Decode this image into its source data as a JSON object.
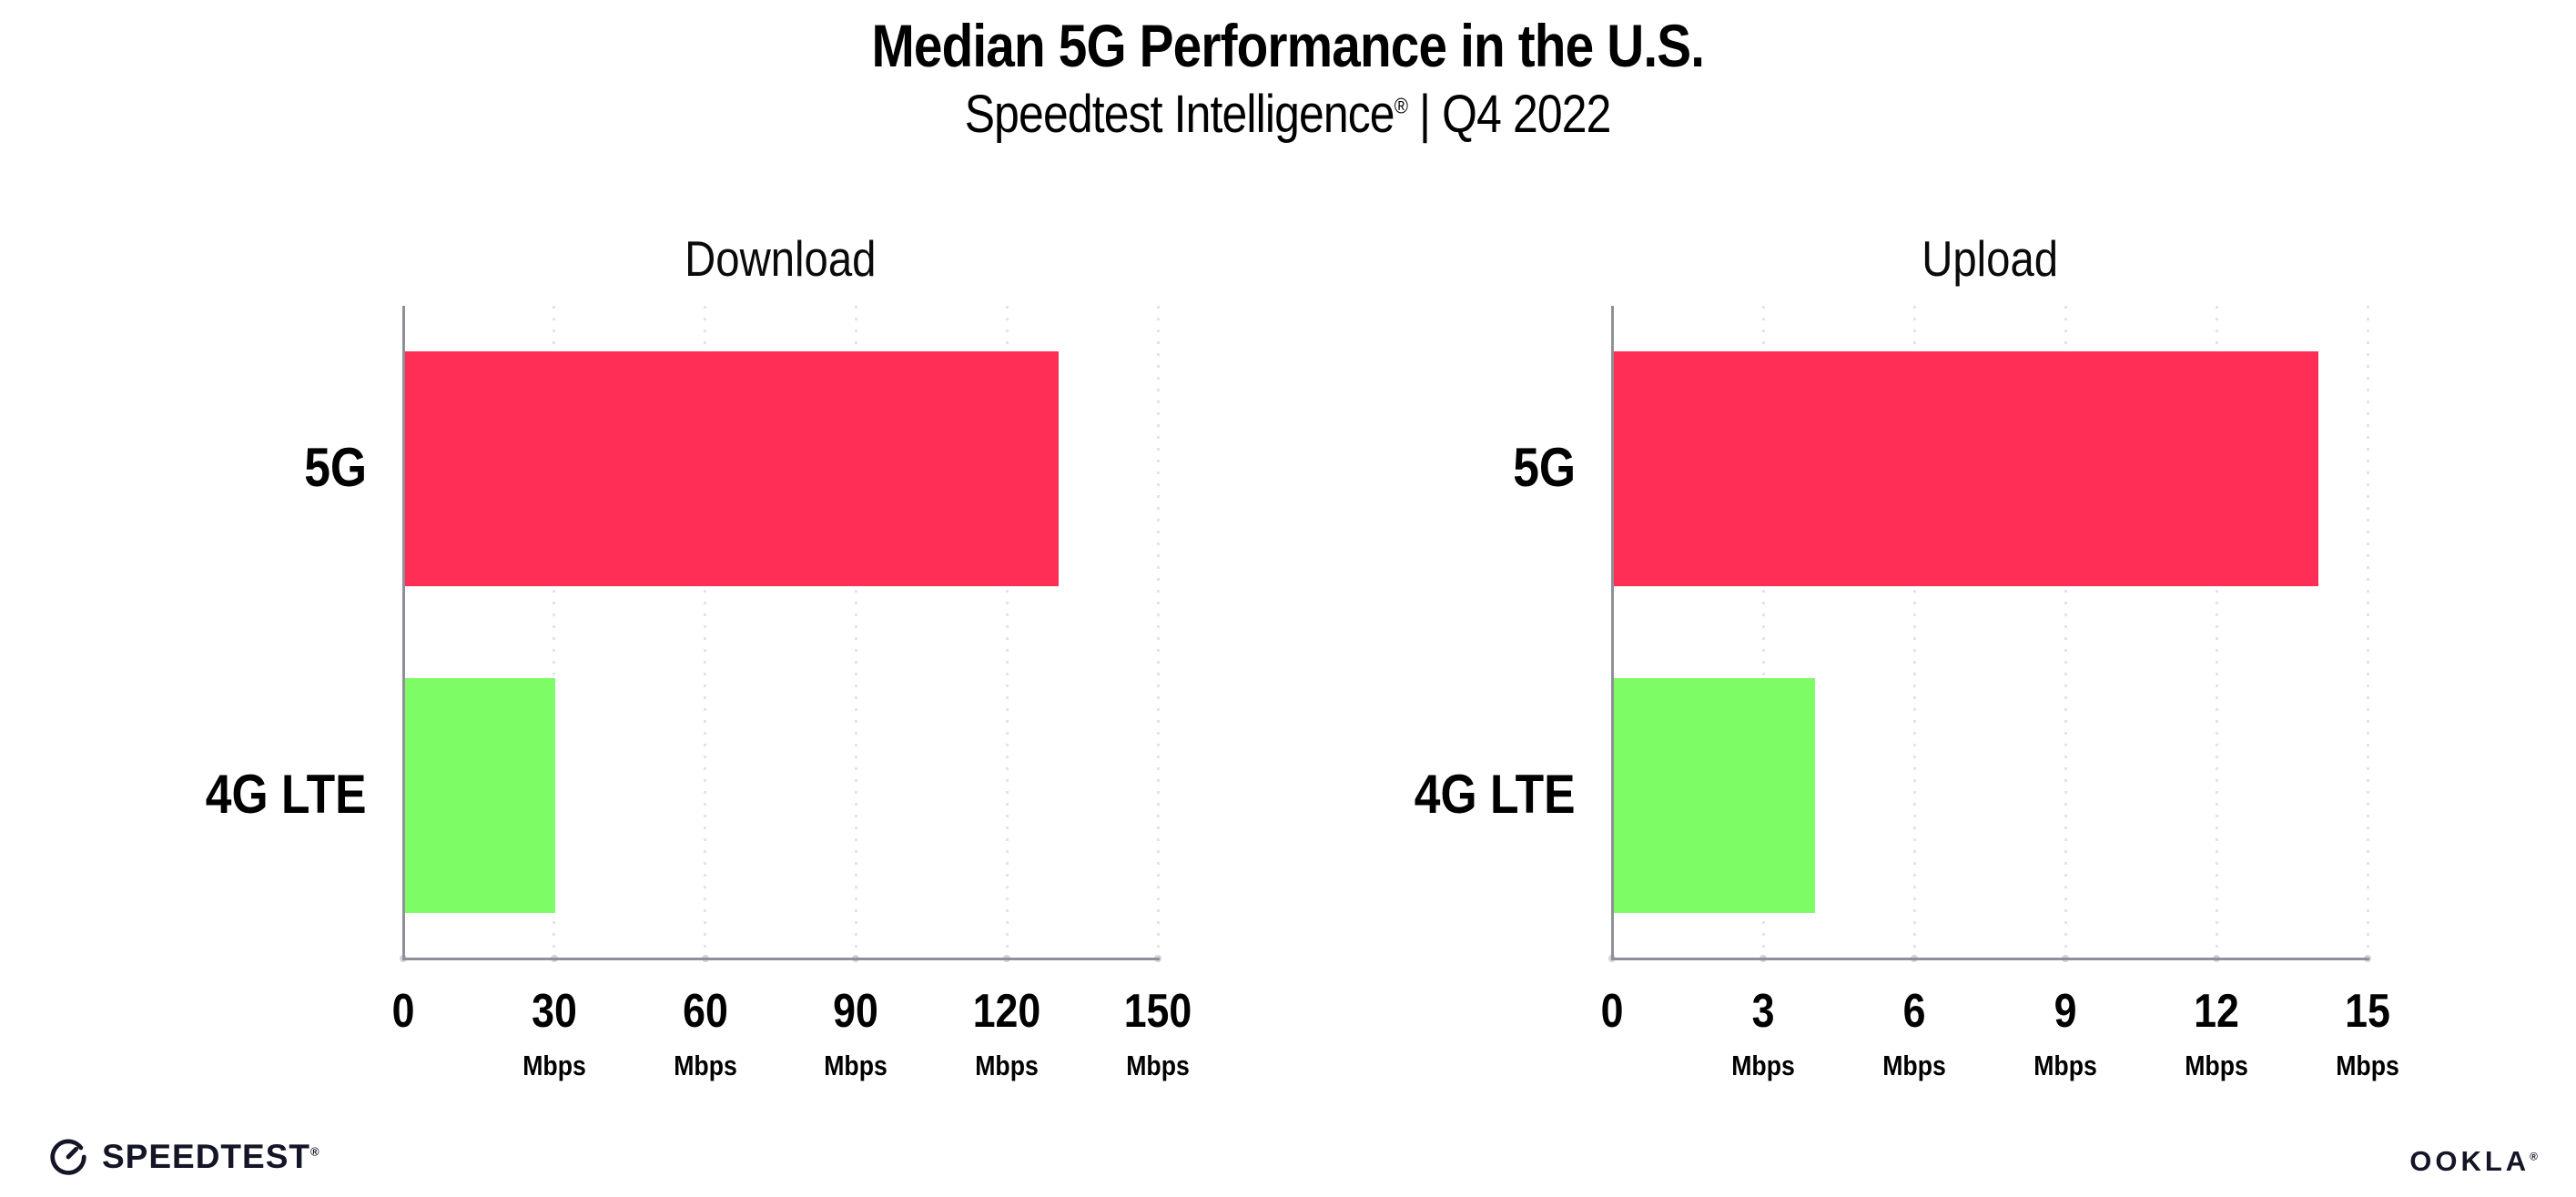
{
  "header": {
    "title": "Median 5G Performance in the U.S.",
    "subtitle_brand": "Speedtest Intelligence",
    "subtitle_reg": "®",
    "subtitle_rest": " | Q4 2022"
  },
  "chart_data": [
    {
      "type": "bar",
      "orientation": "horizontal",
      "title": "Download",
      "categories": [
        "5G",
        "4G LTE"
      ],
      "values": [
        130,
        30
      ],
      "unit": "Mbps",
      "xlim": [
        0,
        150
      ],
      "xticks": [
        0,
        30,
        60,
        90,
        120,
        150
      ],
      "tick_unit": "Mbps",
      "bar_colors": [
        "#FF2E56",
        "#7DFC66"
      ],
      "grid": "dotted-vertical",
      "legend": "none"
    },
    {
      "type": "bar",
      "orientation": "horizontal",
      "title": "Upload",
      "categories": [
        "5G",
        "4G LTE"
      ],
      "values": [
        14,
        4
      ],
      "unit": "Mbps",
      "xlim": [
        0,
        15
      ],
      "xticks": [
        0,
        3,
        6,
        9,
        12,
        15
      ],
      "tick_unit": "Mbps",
      "bar_colors": [
        "#FF2E56",
        "#7DFC66"
      ],
      "grid": "dotted-vertical",
      "legend": "none"
    }
  ],
  "colors": {
    "bar_5g": "#FF2E56",
    "bar_4g_lte": "#7DFC66",
    "axis": "#8F8F97",
    "gridline": "#E3E3EA",
    "text": "#000000",
    "footer_text": "#141526"
  },
  "footer": {
    "speedtest_label": "SPEEDTEST",
    "speedtest_reg": "®",
    "ookla_label": "OOKLA",
    "ookla_reg": "®"
  }
}
